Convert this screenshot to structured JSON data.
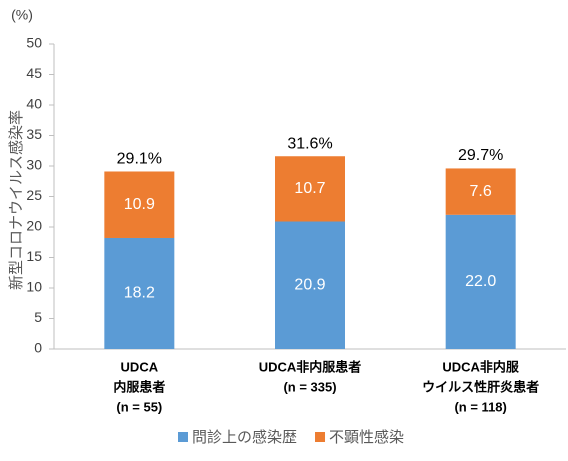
{
  "chart_data": {
    "type": "stacked_bar",
    "y_unit": "(%)",
    "ylabel": "新型コロナウイルス感染率",
    "categories": [
      [
        "UDCA",
        "内服患者",
        "(n = 55)"
      ],
      [
        "UDCA非内服患者",
        "(n = 335)"
      ],
      [
        "UDCA非内服",
        "ウイルス性肝炎患者",
        "(n = 118)"
      ]
    ],
    "series": [
      {
        "name": "問診上の感染歴",
        "color": "#5b9bd5",
        "values": [
          18.2,
          20.9,
          22.0
        ],
        "value_labels": [
          "18.2",
          "20.9",
          "22.0"
        ]
      },
      {
        "name": "不顕性感染",
        "color": "#ed7d31",
        "values": [
          10.9,
          10.7,
          7.6
        ],
        "value_labels": [
          "10.9",
          "10.7",
          "7.6"
        ]
      }
    ],
    "totals": [
      29.1,
      31.6,
      29.7
    ],
    "total_labels": [
      "29.1%",
      "31.6%",
      "29.7%"
    ],
    "ylim": [
      0,
      50
    ],
    "yticks": [
      0,
      5,
      10,
      15,
      20,
      25,
      30,
      35,
      40,
      45,
      50
    ]
  }
}
